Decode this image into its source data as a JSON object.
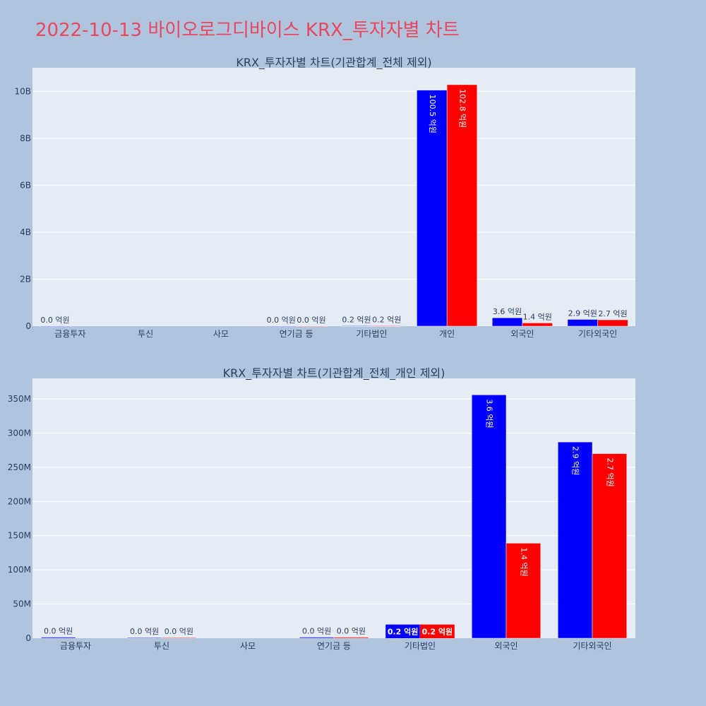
{
  "title": "2022-10-13 바이오로그디바이스 KRX_투자자별 차트",
  "colors": {
    "page_background": "#b0c4de",
    "plot_background": "#e5ecf6",
    "gridline": "#ffffff",
    "title_color": "#e8475f",
    "text_color": "#2a3f5f",
    "buy_color": "#0000ff",
    "sell_color": "#ff0000"
  },
  "chart_data": [
    {
      "type": "bar",
      "title": "KRX_투자자별 차트(기관합계_전체 제외)",
      "categories": [
        "금융투자",
        "투신",
        "사모",
        "연기금 등",
        "기타법인",
        "개인",
        "외국인",
        "기타외국인"
      ],
      "ylim": [
        0,
        11000000000
      ],
      "yticks": [
        0,
        2000000000,
        4000000000,
        6000000000,
        8000000000,
        10000000000
      ],
      "yticklabels": [
        "0",
        "2B",
        "4B",
        "6B",
        "8B",
        "10B"
      ],
      "grid": true,
      "series": [
        {
          "color": "#0000ff",
          "values": [
            1500000,
            0,
            0,
            1500000,
            15000000,
            10050000000,
            357000000,
            287000000
          ],
          "labels": [
            "0.0 억원",
            "",
            "",
            "0.0 억원",
            "0.2 억원",
            "100.5 억원",
            "3.6 억원",
            "2.9 억원"
          ]
        },
        {
          "color": "#ff0000",
          "values": [
            0,
            0,
            0,
            1500000,
            15000000,
            10280000000,
            138000000,
            270000000
          ],
          "labels": [
            "",
            "",
            "",
            "0.0 억원",
            "0.2 억원",
            "102.8 억원",
            "1.4 억원",
            "2.7 억원"
          ]
        }
      ]
    },
    {
      "type": "bar",
      "title": "KRX_투자자별 차트(기관합계_전체_개인 제외)",
      "categories": [
        "금융투자",
        "투신",
        "사모",
        "연기금 등",
        "기타법인",
        "외국인",
        "기타외국인"
      ],
      "ylim": [
        0,
        380000000
      ],
      "yticks": [
        0,
        50000000,
        100000000,
        150000000,
        200000000,
        250000000,
        300000000,
        350000000
      ],
      "yticklabels": [
        "0",
        "50M",
        "100M",
        "150M",
        "200M",
        "250M",
        "300M",
        "350M"
      ],
      "grid": true,
      "series": [
        {
          "color": "#0000ff",
          "values": [
            1500000,
            1000000,
            0,
            1500000,
            20000000,
            356000000,
            287000000
          ],
          "labels": [
            "0.0 억원",
            "0.0 억원",
            "",
            "0.0 억원",
            "0.2 억원",
            "3.6 억원",
            "2.9 억원"
          ]
        },
        {
          "color": "#ff0000",
          "values": [
            0,
            1000000,
            0,
            1500000,
            20000000,
            139000000,
            270000000
          ],
          "labels": [
            "",
            "0.0 억원",
            "",
            "0.0 억원",
            "0.2 억원",
            "1.4 억원",
            "2.7 억원"
          ]
        }
      ]
    }
  ]
}
